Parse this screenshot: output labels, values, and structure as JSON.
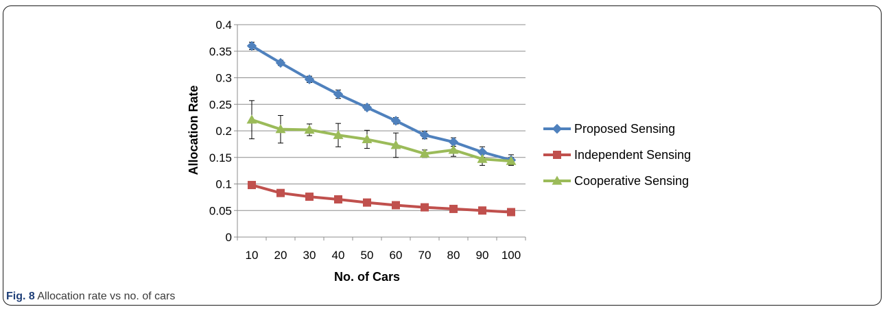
{
  "caption": {
    "label": "Fig. 8",
    "text": "Allocation rate vs no. of cars"
  },
  "chart_data": {
    "type": "line",
    "title": "",
    "xlabel": "No. of Cars",
    "ylabel": "Allocation Rate",
    "x": [
      "10",
      "20",
      "30",
      "40",
      "50",
      "60",
      "70",
      "80",
      "90",
      "100"
    ],
    "ylim": [
      0,
      0.4
    ],
    "yticks": [
      "0",
      "0.05",
      "0.1",
      "0.15",
      "0.2",
      "0.25",
      "0.3",
      "0.35",
      "0.4"
    ],
    "grid": true,
    "legend_position": "right",
    "series": [
      {
        "name": "Proposed Sensing",
        "color": "#4f81bd",
        "marker": "diamond",
        "values": [
          0.36,
          0.328,
          0.297,
          0.269,
          0.244,
          0.219,
          0.192,
          0.179,
          0.16,
          0.145
        ],
        "errors": [
          0.007,
          0.005,
          0.006,
          0.008,
          0.005,
          0.006,
          0.007,
          0.008,
          0.01,
          0.01
        ]
      },
      {
        "name": "Independent Sensing",
        "color": "#c0504d",
        "marker": "square",
        "values": [
          0.098,
          0.083,
          0.076,
          0.071,
          0.065,
          0.06,
          0.056,
          0.053,
          0.05,
          0.047
        ],
        "errors": []
      },
      {
        "name": "Cooperative Sensing",
        "color": "#9bbb59",
        "marker": "triangle",
        "values": [
          0.221,
          0.203,
          0.202,
          0.192,
          0.184,
          0.173,
          0.157,
          0.164,
          0.147,
          0.143
        ],
        "errors": [
          0.036,
          0.026,
          0.011,
          0.022,
          0.017,
          0.023,
          0.007,
          0.012,
          0.012,
          0.007
        ]
      }
    ]
  }
}
